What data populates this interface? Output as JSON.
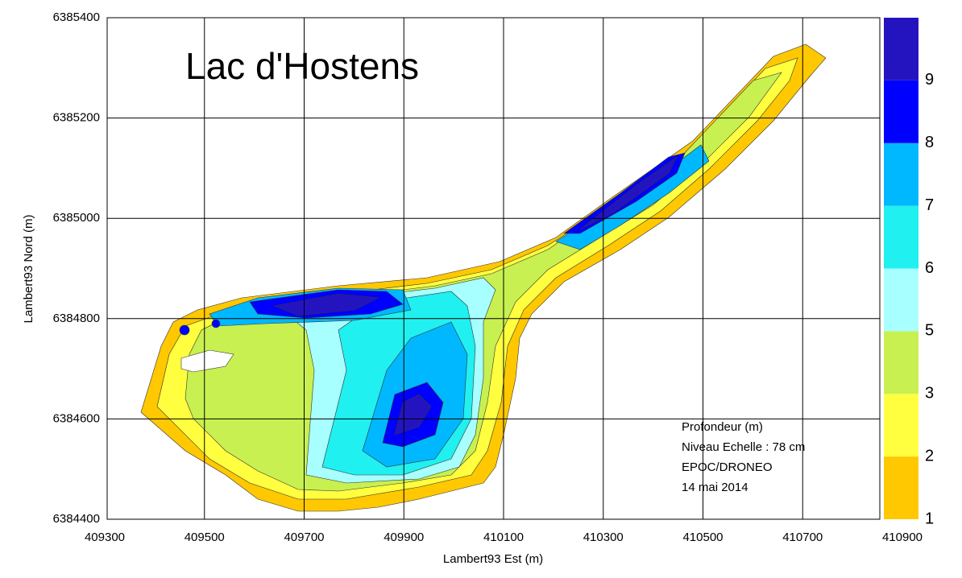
{
  "chart_data": {
    "type": "contour-map",
    "title": "Lac d'Hostens",
    "x_label": "Lambert93 Est (m)",
    "y_label": "Lambert93 Nord (m)",
    "xlim": [
      409300,
      410900
    ],
    "xticks": [
      409300,
      409500,
      409700,
      409900,
      410100,
      410300,
      410500,
      410700,
      410900
    ],
    "ylim": [
      6384400,
      6385400
    ],
    "yticks": [
      6384400,
      6384600,
      6384800,
      6385000,
      6385200,
      6385400
    ],
    "grid": true,
    "annotations": [
      "Profondeur (m)",
      "Niveau Echelle : 78 cm",
      "EPOC/DRONEO",
      "14 mai 2014"
    ],
    "colorbar": {
      "levels": [
        1,
        2,
        3,
        5,
        6,
        7,
        8,
        9
      ],
      "colors": [
        "#ffc800",
        "#ffff40",
        "#c8f050",
        "#a8ffff",
        "#20f0f0",
        "#00b8ff",
        "#0000ff",
        "#2414c0"
      ]
    }
  }
}
